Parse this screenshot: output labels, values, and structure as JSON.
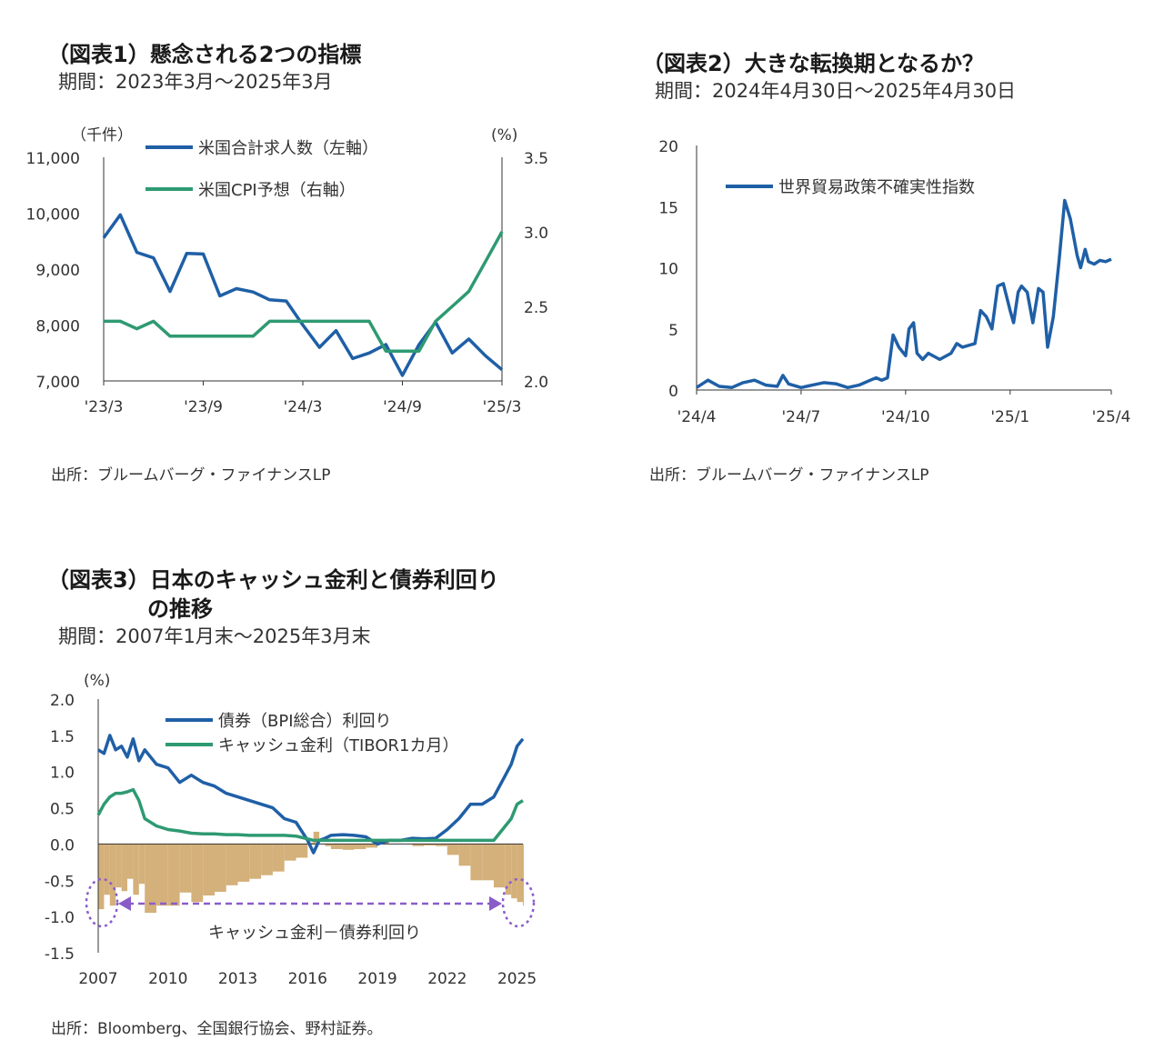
{
  "colors": {
    "blue": "#1f5fa6",
    "green": "#2e9a72",
    "tan": "#d4b07a",
    "purple": "#8a5cc9",
    "axis": "#333333"
  },
  "chart1": {
    "title": "（図表1）懸念される2つの指標",
    "subtitle": "期間：2023年3月～2025年3月",
    "source": "出所：ブルームバーグ・ファイナンスLP",
    "left_unit": "（千件）",
    "right_unit": "(%)"
  },
  "chart2": {
    "title": "（図表2）大きな転換期となるか？",
    "subtitle": "期間：2024年4月30日～2025年4月30日",
    "source": "出所：ブルームバーグ・ファイナンスLP"
  },
  "chart3": {
    "title_line1": "（図表3）日本のキャッシュ金利と債券利回り",
    "title_line2": "の推移",
    "subtitle": "期間：2007年1月末～2025年3月末",
    "source": "出所：Bloomberg、全国銀行協会、野村証券。",
    "unit": "(%)",
    "annotation": "キャッシュ金利－債券利回り"
  },
  "chart_data": [
    {
      "type": "line",
      "x_ticks": [
        "'23/3",
        "'23/9",
        "'24/3",
        "'24/9",
        "'25/3"
      ],
      "x_months": [
        "2023-03",
        "2023-04",
        "2023-05",
        "2023-06",
        "2023-07",
        "2023-08",
        "2023-09",
        "2023-10",
        "2023-11",
        "2023-12",
        "2024-01",
        "2024-02",
        "2024-03",
        "2024-04",
        "2024-05",
        "2024-06",
        "2024-07",
        "2024-08",
        "2024-09",
        "2024-10",
        "2024-11",
        "2024-12",
        "2025-01",
        "2025-02",
        "2025-03"
      ],
      "left_axis": {
        "ylim": [
          7000,
          11000
        ],
        "ticks": [
          "11,000",
          "10,000",
          "9,000",
          "8,000",
          "7,000"
        ]
      },
      "right_axis": {
        "ylim": [
          2.0,
          3.5
        ],
        "ticks": [
          "3.5",
          "3.0",
          "2.5",
          "2.0"
        ]
      },
      "series": [
        {
          "name": "米国合計求人数（左軸）",
          "axis": "left",
          "values": [
            9560,
            9970,
            9300,
            9200,
            8600,
            9280,
            9270,
            8520,
            8650,
            8590,
            8450,
            8430,
            8000,
            7600,
            7900,
            7400,
            7500,
            7650,
            7100,
            7650,
            8050,
            7500,
            7750,
            7450,
            7200
          ]
        },
        {
          "name": "米国CPI予想（右軸）",
          "axis": "right",
          "values": [
            2.4,
            2.4,
            2.35,
            2.4,
            2.3,
            2.3,
            2.3,
            2.3,
            2.3,
            2.3,
            2.4,
            2.4,
            2.4,
            2.4,
            2.4,
            2.4,
            2.4,
            2.2,
            2.2,
            2.2,
            2.4,
            2.5,
            2.6,
            2.8,
            3.0
          ]
        }
      ],
      "grid": false,
      "legend": "top-left"
    },
    {
      "type": "line",
      "x_ticks": [
        "'24/4",
        "'24/7",
        "'24/10",
        "'25/1",
        "'25/4"
      ],
      "ylim": [
        0,
        20
      ],
      "y_ticks": [
        "20",
        "15",
        "10",
        "5",
        "0"
      ],
      "series": [
        {
          "name": "世界貿易政策不確実性指数",
          "x": [
            "2024-04-30",
            "2024-05-10",
            "2024-05-20",
            "2024-05-31",
            "2024-06-10",
            "2024-06-20",
            "2024-06-30",
            "2024-07-10",
            "2024-07-15",
            "2024-07-20",
            "2024-07-31",
            "2024-08-10",
            "2024-08-20",
            "2024-08-31",
            "2024-09-10",
            "2024-09-20",
            "2024-09-30",
            "2024-10-05",
            "2024-10-10",
            "2024-10-15",
            "2024-10-20",
            "2024-10-25",
            "2024-10-31",
            "2024-11-03",
            "2024-11-07",
            "2024-11-10",
            "2024-11-15",
            "2024-11-20",
            "2024-11-30",
            "2024-12-10",
            "2024-12-15",
            "2024-12-20",
            "2024-12-31",
            "2025-01-05",
            "2025-01-10",
            "2025-01-15",
            "2025-01-20",
            "2025-01-25",
            "2025-01-31",
            "2025-02-03",
            "2025-02-07",
            "2025-02-10",
            "2025-02-15",
            "2025-02-20",
            "2025-02-25",
            "2025-03-01",
            "2025-03-05",
            "2025-03-10",
            "2025-03-15",
            "2025-03-20",
            "2025-03-25",
            "2025-03-31",
            "2025-04-03",
            "2025-04-07",
            "2025-04-10",
            "2025-04-15",
            "2025-04-20",
            "2025-04-25",
            "2025-04-30"
          ],
          "values": [
            0.2,
            0.8,
            0.3,
            0.2,
            0.6,
            0.8,
            0.4,
            0.3,
            1.2,
            0.5,
            0.2,
            0.4,
            0.6,
            0.5,
            0.2,
            0.4,
            0.8,
            1.0,
            0.8,
            1.0,
            4.5,
            3.5,
            2.8,
            5.0,
            5.5,
            3.0,
            2.5,
            3.0,
            2.5,
            3.0,
            3.8,
            3.5,
            3.8,
            6.5,
            6.0,
            5.0,
            8.5,
            8.7,
            6.5,
            5.5,
            8.0,
            8.5,
            8.0,
            5.5,
            8.3,
            8.0,
            3.5,
            6.0,
            10.5,
            15.5,
            14.0,
            11.0,
            10.0,
            11.5,
            10.5,
            10.3,
            10.6,
            10.5,
            10.7
          ]
        }
      ],
      "grid": false,
      "legend": "top-left"
    },
    {
      "type": "line",
      "x_ticks": [
        "2007",
        "2010",
        "2013",
        "2016",
        "2019",
        "2022",
        "2025"
      ],
      "ylim": [
        -1.5,
        2.0
      ],
      "y_ticks": [
        "2.0",
        "1.5",
        "1.0",
        "0.5",
        "0.0",
        "-0.5",
        "-1.0",
        "-1.5"
      ],
      "x_years": [
        2007.0,
        2007.25,
        2007.5,
        2007.75,
        2008.0,
        2008.25,
        2008.5,
        2008.75,
        2009.0,
        2009.5,
        2010.0,
        2010.5,
        2011.0,
        2011.5,
        2012.0,
        2012.5,
        2013.0,
        2013.5,
        2014.0,
        2014.5,
        2015.0,
        2015.5,
        2016.0,
        2016.25,
        2016.5,
        2016.75,
        2017.0,
        2017.5,
        2018.0,
        2018.5,
        2019.0,
        2019.5,
        2020.0,
        2020.5,
        2021.0,
        2021.5,
        2022.0,
        2022.5,
        2023.0,
        2023.5,
        2024.0,
        2024.5,
        2024.75,
        2025.0,
        2025.25
      ],
      "series": [
        {
          "name": "債券（BPI総合）利回り",
          "values": [
            1.3,
            1.25,
            1.5,
            1.3,
            1.35,
            1.2,
            1.45,
            1.15,
            1.3,
            1.1,
            1.05,
            0.85,
            0.95,
            0.85,
            0.8,
            0.7,
            0.65,
            0.6,
            0.55,
            0.5,
            0.35,
            0.3,
            0.05,
            -0.12,
            0.05,
            0.08,
            0.12,
            0.13,
            0.12,
            0.1,
            0.0,
            0.05,
            0.05,
            0.08,
            0.07,
            0.08,
            0.2,
            0.35,
            0.55,
            0.55,
            0.65,
            0.95,
            1.1,
            1.35,
            1.45
          ]
        },
        {
          "name": "キャッシュ金利（TIBOR1カ月）",
          "values": [
            0.4,
            0.55,
            0.65,
            0.7,
            0.7,
            0.72,
            0.75,
            0.6,
            0.35,
            0.25,
            0.2,
            0.18,
            0.15,
            0.14,
            0.14,
            0.13,
            0.13,
            0.12,
            0.12,
            0.12,
            0.12,
            0.11,
            0.07,
            0.05,
            0.05,
            0.05,
            0.05,
            0.05,
            0.05,
            0.05,
            0.05,
            0.05,
            0.05,
            0.05,
            0.05,
            0.05,
            0.05,
            0.05,
            0.05,
            0.05,
            0.05,
            0.25,
            0.35,
            0.55,
            0.6
          ]
        }
      ],
      "bars": {
        "name": "キャッシュ金利－債券利回り",
        "values": "difference of the two series"
      },
      "grid": false,
      "legend": "top-center"
    }
  ]
}
